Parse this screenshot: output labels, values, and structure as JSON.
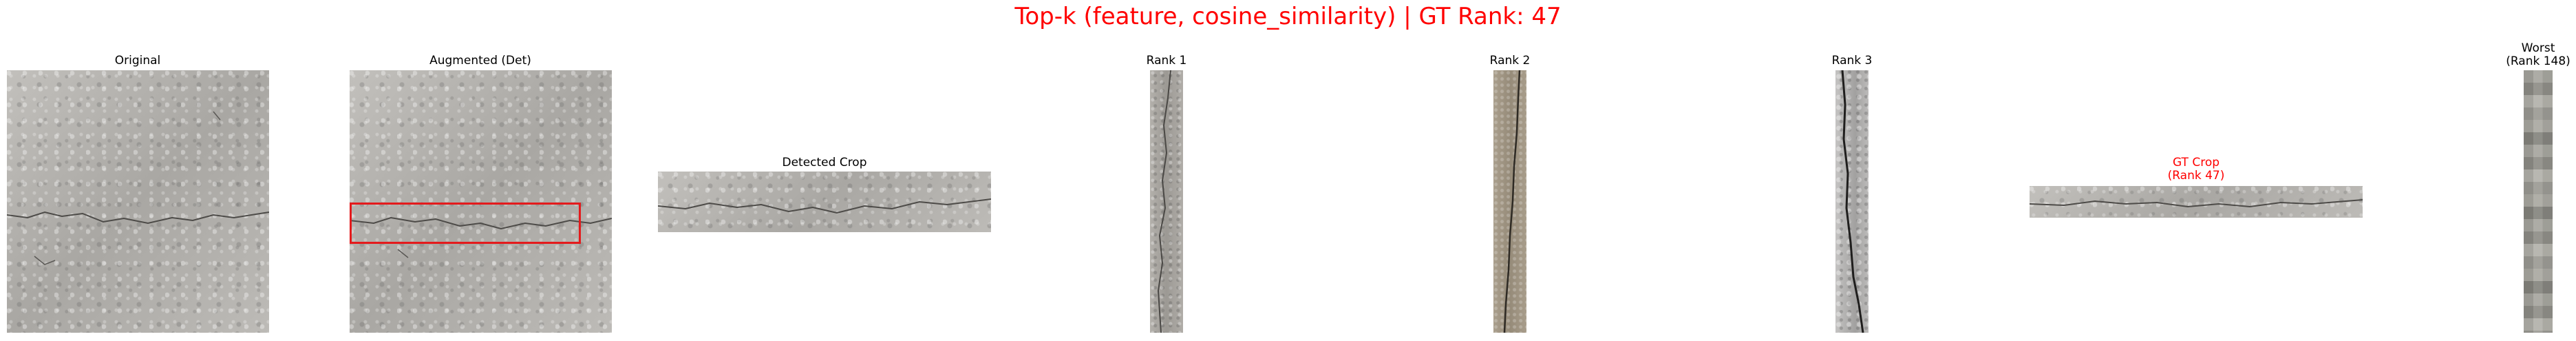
{
  "title": "Top-k (feature, cosine_similarity) | GT Rank: 47",
  "panels": {
    "original": "Original",
    "augmented": "Augmented (Det)",
    "detected_crop": "Detected Crop",
    "rank1": "Rank 1",
    "rank2": "Rank 2",
    "rank3": "Rank 3",
    "gt_crop_line1": "GT Crop",
    "gt_crop_line2": "(Rank 47)",
    "worst_line1": "Worst",
    "worst_line2": "(Rank 148)"
  },
  "colors": {
    "title": "#ff0000",
    "gt_label": "#ff0000",
    "detection_box": "#e41a1c"
  }
}
